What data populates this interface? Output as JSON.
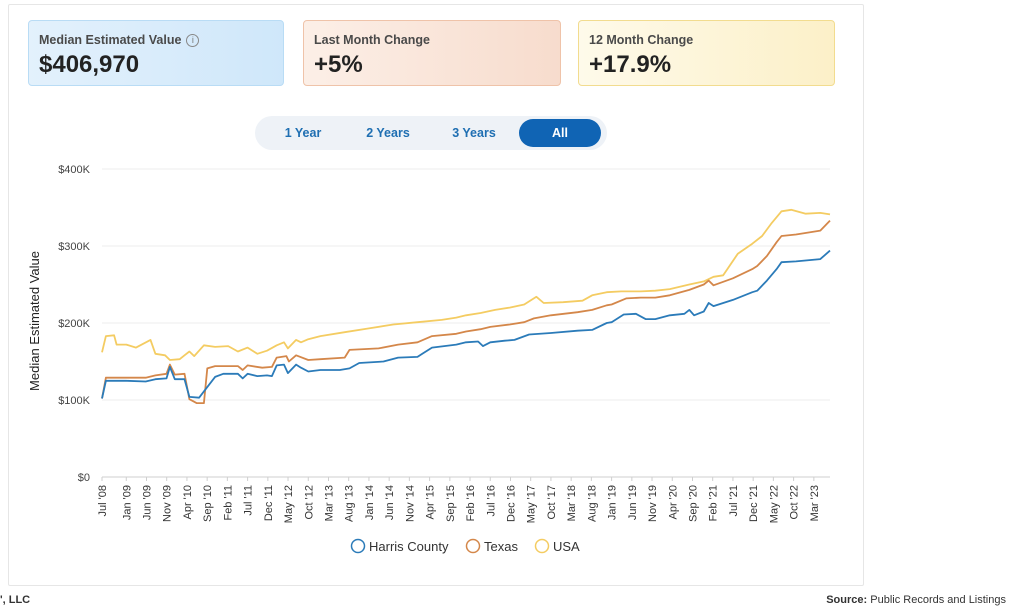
{
  "cards": [
    {
      "label": "Median Estimated Value",
      "value": "$406,970",
      "info_icon": "info-icon"
    },
    {
      "label": "Last Month Change",
      "value": "+5%"
    },
    {
      "label": "12 Month Change",
      "value": "+17.9%"
    }
  ],
  "range_options": [
    "1 Year",
    "2 Years",
    "3 Years",
    "All"
  ],
  "range_selected": "All",
  "footer": {
    "left": "', LLC",
    "source_label": "Source:",
    "source_text": "Public Records and Listings"
  },
  "chart_data": {
    "type": "line",
    "title": "",
    "xlabel": "",
    "ylabel": "Median Estimated Value",
    "ylim": [
      0,
      400000
    ],
    "yticks": [
      0,
      100000,
      200000,
      300000,
      400000
    ],
    "ytick_labels": [
      "$0",
      "$100K",
      "$200K",
      "$300K",
      "$400K"
    ],
    "xlim": [
      2008.5,
      2023.5
    ],
    "xticks": [
      2008.5,
      2009.0,
      2009.417,
      2009.833,
      2010.25,
      2010.667,
      2011.083,
      2011.5,
      2011.917,
      2012.333,
      2012.75,
      2013.167,
      2013.583,
      2014.0,
      2014.417,
      2014.833,
      2015.25,
      2015.667,
      2016.083,
      2016.5,
      2016.917,
      2017.333,
      2017.75,
      2018.167,
      2018.583,
      2019.0,
      2019.417,
      2019.833,
      2020.25,
      2020.667,
      2021.083,
      2021.5,
      2021.917,
      2022.333,
      2022.75,
      2023.167
    ],
    "xtick_labels": [
      "Jul '08",
      "Jan '09",
      "Jun '09",
      "Nov '09",
      "Apr '10",
      "Sep '10",
      "Feb '11",
      "Jul '11",
      "Dec '11",
      "May '12",
      "Oct '12",
      "Mar '13",
      "Aug '13",
      "Jan '14",
      "Jun '14",
      "Nov '14",
      "Apr '15",
      "Sep '15",
      "Feb '16",
      "Jul '16",
      "Dec '16",
      "May '17",
      "Oct '17",
      "Mar '18",
      "Aug '18",
      "Jan '19",
      "Jun '19",
      "Nov '19",
      "Apr '20",
      "Sep '20",
      "Feb '21",
      "Jul '21",
      "Dec '21",
      "May '22",
      "Oct '22",
      "Mar '23"
    ],
    "grid": true,
    "legend": "bottom-center",
    "series": [
      {
        "name": "Harris County",
        "color": "#2b7bb9",
        "points": [
          [
            2008.5,
            102000
          ],
          [
            2008.58,
            125000
          ],
          [
            2009.0,
            125000
          ],
          [
            2009.4,
            124000
          ],
          [
            2009.6,
            127000
          ],
          [
            2009.83,
            128000
          ],
          [
            2009.9,
            143000
          ],
          [
            2010.0,
            127000
          ],
          [
            2010.2,
            127000
          ],
          [
            2010.3,
            104000
          ],
          [
            2010.5,
            103000
          ],
          [
            2010.83,
            130000
          ],
          [
            2011.0,
            134000
          ],
          [
            2011.3,
            134000
          ],
          [
            2011.4,
            128000
          ],
          [
            2011.5,
            134000
          ],
          [
            2011.7,
            131000
          ],
          [
            2011.9,
            132000
          ],
          [
            2012.0,
            131000
          ],
          [
            2012.1,
            145000
          ],
          [
            2012.25,
            146000
          ],
          [
            2012.33,
            135000
          ],
          [
            2012.5,
            146000
          ],
          [
            2012.6,
            142000
          ],
          [
            2012.75,
            137000
          ],
          [
            2013.0,
            139000
          ],
          [
            2013.4,
            139000
          ],
          [
            2013.6,
            141000
          ],
          [
            2013.8,
            148000
          ],
          [
            2014.3,
            150000
          ],
          [
            2014.6,
            155000
          ],
          [
            2015.0,
            156000
          ],
          [
            2015.1,
            160000
          ],
          [
            2015.3,
            168000
          ],
          [
            2015.8,
            172000
          ],
          [
            2016.0,
            175000
          ],
          [
            2016.25,
            176000
          ],
          [
            2016.35,
            170000
          ],
          [
            2016.5,
            175000
          ],
          [
            2016.8,
            177000
          ],
          [
            2017.0,
            178000
          ],
          [
            2017.3,
            185000
          ],
          [
            2017.75,
            187000
          ],
          [
            2018.3,
            190000
          ],
          [
            2018.6,
            191000
          ],
          [
            2018.9,
            200000
          ],
          [
            2019.0,
            201000
          ],
          [
            2019.25,
            211000
          ],
          [
            2019.5,
            212000
          ],
          [
            2019.7,
            205000
          ],
          [
            2019.9,
            205000
          ],
          [
            2020.2,
            210000
          ],
          [
            2020.5,
            212000
          ],
          [
            2020.6,
            217000
          ],
          [
            2020.7,
            210000
          ],
          [
            2020.9,
            215000
          ],
          [
            2021.0,
            226000
          ],
          [
            2021.1,
            222000
          ],
          [
            2021.5,
            230000
          ],
          [
            2021.9,
            240000
          ],
          [
            2022.0,
            242000
          ],
          [
            2022.2,
            255000
          ],
          [
            2022.4,
            270000
          ],
          [
            2022.5,
            279000
          ],
          [
            2022.8,
            280000
          ],
          [
            2023.3,
            283000
          ],
          [
            2023.5,
            294000
          ]
        ]
      },
      {
        "name": "Texas",
        "color": "#d4874a",
        "points": [
          [
            2008.5,
            102000
          ],
          [
            2008.58,
            129000
          ],
          [
            2009.0,
            129000
          ],
          [
            2009.4,
            129000
          ],
          [
            2009.6,
            132000
          ],
          [
            2009.83,
            134000
          ],
          [
            2009.9,
            146000
          ],
          [
            2010.0,
            133000
          ],
          [
            2010.2,
            134000
          ],
          [
            2010.3,
            101000
          ],
          [
            2010.45,
            96000
          ],
          [
            2010.6,
            96000
          ],
          [
            2010.67,
            141000
          ],
          [
            2010.83,
            144000
          ],
          [
            2011.3,
            144000
          ],
          [
            2011.4,
            139000
          ],
          [
            2011.5,
            145000
          ],
          [
            2011.8,
            142000
          ],
          [
            2012.0,
            143000
          ],
          [
            2012.1,
            155000
          ],
          [
            2012.3,
            157000
          ],
          [
            2012.35,
            150000
          ],
          [
            2012.5,
            158000
          ],
          [
            2012.75,
            152000
          ],
          [
            2013.0,
            153000
          ],
          [
            2013.5,
            155000
          ],
          [
            2013.6,
            165000
          ],
          [
            2014.2,
            167000
          ],
          [
            2014.6,
            172000
          ],
          [
            2015.0,
            175000
          ],
          [
            2015.3,
            183000
          ],
          [
            2015.8,
            186000
          ],
          [
            2016.0,
            189000
          ],
          [
            2016.3,
            192000
          ],
          [
            2016.5,
            195000
          ],
          [
            2016.9,
            198000
          ],
          [
            2017.2,
            201000
          ],
          [
            2017.4,
            206000
          ],
          [
            2017.75,
            210000
          ],
          [
            2018.3,
            214000
          ],
          [
            2018.6,
            217000
          ],
          [
            2018.9,
            223000
          ],
          [
            2019.0,
            224000
          ],
          [
            2019.3,
            232000
          ],
          [
            2019.6,
            233000
          ],
          [
            2019.9,
            233000
          ],
          [
            2020.2,
            236000
          ],
          [
            2020.6,
            243000
          ],
          [
            2020.9,
            250000
          ],
          [
            2021.0,
            255000
          ],
          [
            2021.1,
            249000
          ],
          [
            2021.5,
            258000
          ],
          [
            2021.9,
            270000
          ],
          [
            2022.0,
            274000
          ],
          [
            2022.2,
            287000
          ],
          [
            2022.4,
            305000
          ],
          [
            2022.5,
            313000
          ],
          [
            2022.8,
            315000
          ],
          [
            2023.3,
            320000
          ],
          [
            2023.5,
            333000
          ]
        ]
      },
      {
        "name": "USA",
        "color": "#f4cc62",
        "points": [
          [
            2008.5,
            162000
          ],
          [
            2008.58,
            183000
          ],
          [
            2008.75,
            184000
          ],
          [
            2008.8,
            172000
          ],
          [
            2009.0,
            172000
          ],
          [
            2009.2,
            168000
          ],
          [
            2009.5,
            178000
          ],
          [
            2009.6,
            160000
          ],
          [
            2009.8,
            158000
          ],
          [
            2009.9,
            152000
          ],
          [
            2010.1,
            153000
          ],
          [
            2010.2,
            158000
          ],
          [
            2010.3,
            163000
          ],
          [
            2010.4,
            157000
          ],
          [
            2010.6,
            171000
          ],
          [
            2010.83,
            169000
          ],
          [
            2011.1,
            170000
          ],
          [
            2011.3,
            163000
          ],
          [
            2011.5,
            168000
          ],
          [
            2011.7,
            160000
          ],
          [
            2011.9,
            164000
          ],
          [
            2012.1,
            171000
          ],
          [
            2012.25,
            175000
          ],
          [
            2012.33,
            167000
          ],
          [
            2012.5,
            178000
          ],
          [
            2012.6,
            175000
          ],
          [
            2012.75,
            179000
          ],
          [
            2013.0,
            183000
          ],
          [
            2013.5,
            188000
          ],
          [
            2014.0,
            193000
          ],
          [
            2014.5,
            198000
          ],
          [
            2015.0,
            201000
          ],
          [
            2015.5,
            204000
          ],
          [
            2015.8,
            207000
          ],
          [
            2016.0,
            210000
          ],
          [
            2016.3,
            213000
          ],
          [
            2016.6,
            217000
          ],
          [
            2016.9,
            220000
          ],
          [
            2017.2,
            224000
          ],
          [
            2017.45,
            234000
          ],
          [
            2017.6,
            226000
          ],
          [
            2018.0,
            227000
          ],
          [
            2018.4,
            229000
          ],
          [
            2018.6,
            236000
          ],
          [
            2018.9,
            240000
          ],
          [
            2019.2,
            241000
          ],
          [
            2019.6,
            241000
          ],
          [
            2019.9,
            242000
          ],
          [
            2020.2,
            244000
          ],
          [
            2020.6,
            250000
          ],
          [
            2020.9,
            254000
          ],
          [
            2021.1,
            260000
          ],
          [
            2021.3,
            262000
          ],
          [
            2021.6,
            290000
          ],
          [
            2021.9,
            303000
          ],
          [
            2022.1,
            313000
          ],
          [
            2022.3,
            330000
          ],
          [
            2022.5,
            345000
          ],
          [
            2022.7,
            347000
          ],
          [
            2023.0,
            342000
          ],
          [
            2023.3,
            343000
          ],
          [
            2023.5,
            341000
          ]
        ]
      }
    ]
  }
}
